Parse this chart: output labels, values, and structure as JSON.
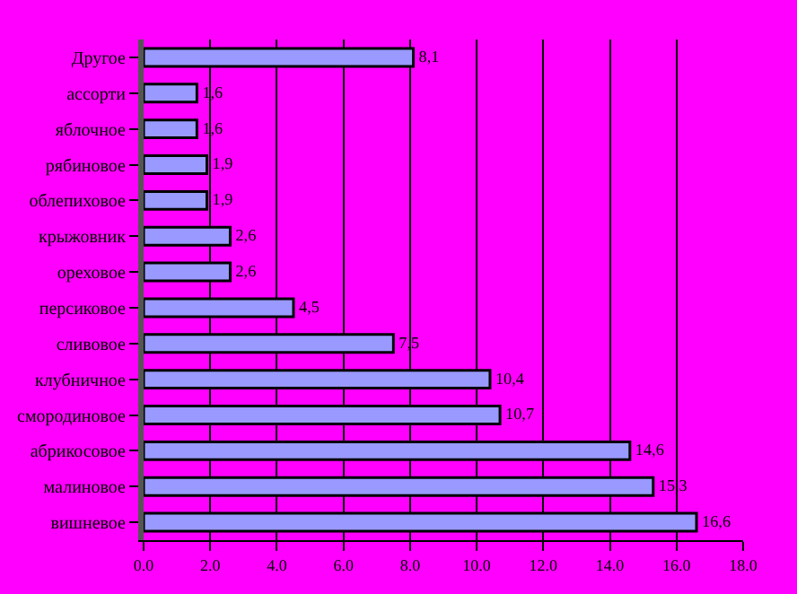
{
  "chart_data": {
    "type": "bar",
    "orientation": "horizontal",
    "categories": [
      "Другое",
      "ассорти",
      "яблочное",
      "рябиновое",
      "облепиховое",
      "крыжовник",
      "ореховое",
      "персиковое",
      "сливовое",
      "клубничное",
      "смородиновое",
      "абрикосовое",
      "малиновое",
      "вишневое"
    ],
    "values": [
      8.1,
      1.6,
      1.6,
      1.9,
      1.9,
      2.6,
      2.6,
      4.5,
      7.5,
      10.4,
      10.7,
      14.6,
      15.3,
      16.6
    ],
    "value_labels": [
      "8,1",
      "1,6",
      "1,6",
      "1,9",
      "1,9",
      "2,6",
      "2,6",
      "4,5",
      "7,5",
      "10,4",
      "10,7",
      "14,6",
      "15,3",
      "16,6"
    ],
    "color": "#9999ff",
    "xlim": [
      0,
      18
    ],
    "xticks": [
      {
        "value": 0,
        "label": "0.0"
      },
      {
        "value": 2,
        "label": "2.0"
      },
      {
        "value": 4,
        "label": "4.0"
      },
      {
        "value": 6,
        "label": "6.0"
      },
      {
        "value": 8,
        "label": "8.0"
      },
      {
        "value": 10,
        "label": "10.0"
      },
      {
        "value": 12,
        "label": "12.0"
      },
      {
        "value": 14,
        "label": "14.0"
      },
      {
        "value": 16,
        "label": "16.0"
      },
      {
        "value": 18,
        "label": "18.0"
      }
    ],
    "grid": "x",
    "legend": false
  }
}
